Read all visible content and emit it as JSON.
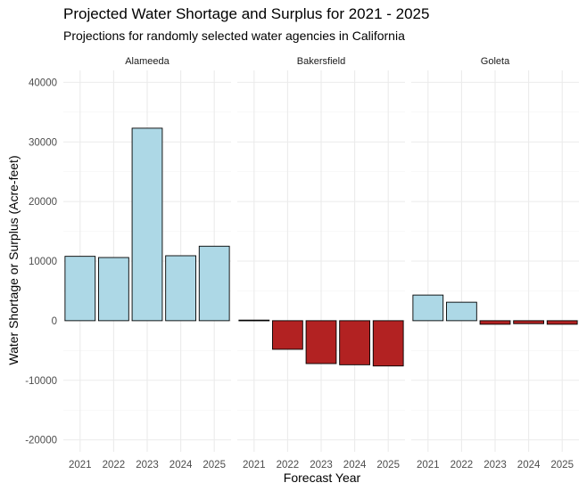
{
  "chart_data": {
    "type": "bar",
    "title": "Projected Water Shortage and Surplus for 2021 - 2025",
    "subtitle": "Projections for randomly selected water agencies in California",
    "xlabel": "Forecast Year",
    "ylabel": "Water Shortage or Surplus (Acre-feet)",
    "ylim": [
      -22000,
      42000
    ],
    "yticks": [
      -20000,
      -10000,
      0,
      10000,
      20000,
      30000,
      40000
    ],
    "ytick_labels": [
      "-20000",
      "-10000",
      "0",
      "10000",
      "20000",
      "30000",
      "40000"
    ],
    "grid": true,
    "categories": [
      "2021",
      "2022",
      "2023",
      "2024",
      "2025"
    ],
    "facets": [
      {
        "name": "Alameeda",
        "values": [
          10800,
          10600,
          32300,
          10900,
          12500
        ]
      },
      {
        "name": "Bakersfield",
        "values": [
          100,
          -4800,
          -7200,
          -7400,
          -7600
        ]
      },
      {
        "name": "Goleta",
        "values": [
          4300,
          3100,
          -600,
          -500,
          -600
        ]
      }
    ],
    "colors": {
      "positive": "#add8e6",
      "negative": "#b22222",
      "outline": "#000000"
    }
  }
}
